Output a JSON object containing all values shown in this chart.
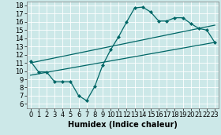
{
  "xlabel": "Humidex (Indice chaleur)",
  "background_color": "#cce8e8",
  "line_color": "#006666",
  "xlim": [
    -0.5,
    23.5
  ],
  "ylim": [
    5.5,
    18.5
  ],
  "xticks": [
    0,
    1,
    2,
    3,
    4,
    5,
    6,
    7,
    8,
    9,
    10,
    11,
    12,
    13,
    14,
    15,
    16,
    17,
    18,
    19,
    20,
    21,
    22,
    23
  ],
  "yticks": [
    6,
    7,
    8,
    9,
    10,
    11,
    12,
    13,
    14,
    15,
    16,
    17,
    18
  ],
  "line1_x": [
    0,
    1,
    2,
    3,
    4,
    5,
    6,
    7,
    8,
    9,
    10,
    11,
    12,
    13,
    14,
    15,
    16,
    17,
    18,
    19,
    20,
    21,
    22,
    23
  ],
  "line1_y": [
    11.2,
    9.9,
    9.9,
    8.7,
    8.7,
    8.7,
    7.0,
    6.4,
    8.1,
    10.7,
    12.6,
    14.2,
    16.0,
    17.7,
    17.8,
    17.2,
    16.1,
    16.1,
    16.5,
    16.5,
    15.8,
    15.2,
    15.0,
    13.5
  ],
  "line2_x": [
    0,
    23
  ],
  "line2_y": [
    11.0,
    15.6
  ],
  "line3_x": [
    0,
    23
  ],
  "line3_y": [
    9.5,
    13.5
  ],
  "xlabel_fontsize": 7,
  "tick_fontsize": 6,
  "marker_size": 2.5,
  "linewidth": 0.9
}
